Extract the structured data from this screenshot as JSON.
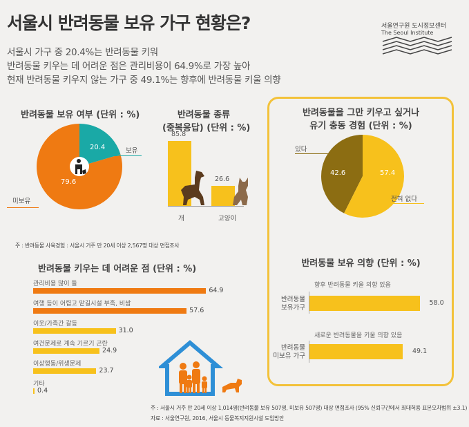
{
  "header": {
    "title": "서울시 반려동물 보유 가구 현황은?",
    "lines": [
      "서울시 가구 중 20.4%는 반려동물 키워",
      "반려동물 키우는 데 어려운 점은 관리비용이 64.9%로 가장 높아",
      "현재 반려동물 키우지 않는 가구 중 49.1%는 향후에 반려동물 키울 의향"
    ],
    "logo_line1": "서울연구원 도시정보센터",
    "logo_line2": "The Seoul Institute"
  },
  "colors": {
    "orange": "#ef7a12",
    "teal": "#1aa9a6",
    "yellow": "#f7c11c",
    "olive": "#8c6d12",
    "panel_border": "#f3c23a"
  },
  "icons": [
    "person-with-pet-icon",
    "dog-icon",
    "cat-icon",
    "family-house-icon"
  ],
  "chart_data": [
    {
      "type": "pie",
      "title": "반려동물 보유 여부 (단위 : %)",
      "slices": [
        {
          "label": "보유",
          "value": 20.4
        },
        {
          "label": "미보유",
          "value": 79.6
        }
      ],
      "note": "주 : 반려동물 사육경험 : 서울시 거주 만 20세 이상 2,567명 대상 면접조사"
    },
    {
      "type": "bar",
      "title_line1": "반려동물 종류",
      "title_line2": "(중복응답) (단위 : %)",
      "categories": [
        "개",
        "고양이"
      ],
      "values": [
        85.8,
        26.6
      ],
      "ylim": [
        0,
        100
      ]
    },
    {
      "type": "pie",
      "title_line1": "반려동물을 그만 키우고 싶거나",
      "title_line2": "유기 충동 경험 (단위 : %)",
      "slices": [
        {
          "label": "있다",
          "value": 42.6
        },
        {
          "label": "전혀 없다",
          "value": 57.4
        }
      ]
    },
    {
      "type": "bar",
      "orientation": "horizontal",
      "title": "반려동물 키우는 데 어려운 점 (단위 : %)",
      "categories": [
        "관리비용 많이 들",
        "여행 등이 어렵고 맡길시설 부족, 비쌈",
        "이웃/가족간 갈등",
        "여건문제로 계속 기르기 곤란",
        "이상행동/위생문제",
        "기타"
      ],
      "values": [
        64.9,
        57.6,
        31.0,
        24.9,
        23.7,
        0.4
      ],
      "value_labels": [
        "64.9",
        "57.6",
        "31.0",
        "24.9",
        "23.7",
        "0.4"
      ],
      "xlim": [
        0,
        70
      ]
    },
    {
      "type": "bar",
      "orientation": "horizontal",
      "title": "반려동물 보유 의향 (단위 : %)",
      "groups": [
        {
          "label_line1": "반려동물",
          "label_line2": "보유가구",
          "caption": "향후 반려동물 키울 의향 있음",
          "value": 58.0,
          "value_label": "58.0"
        },
        {
          "label_line1": "반려동물",
          "label_line2": "미보유 가구",
          "caption": "새로운 반려동물을 키울 의향 있음",
          "value": 49.1,
          "value_label": "49.1"
        }
      ],
      "xlim": [
        0,
        60
      ]
    }
  ],
  "footer": {
    "note1": "주 : 서울시 거주 만 20세 이상 1,014명(반려동물 보유 507명, 미보유 507명) 대상 면접조사 (95% 신뢰구간에서 최대허용 표본오차범위 ±3.1)",
    "note2": "자료 : 서울연구원, 2016, 서울시 동물복지지원시설 도입방안"
  }
}
